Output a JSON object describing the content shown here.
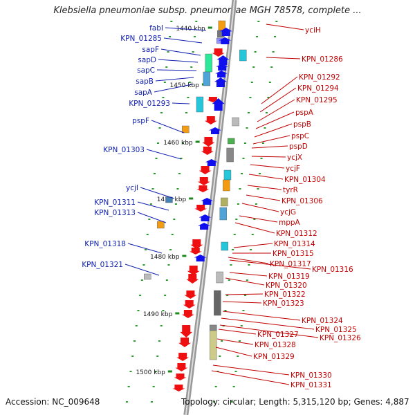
{
  "title": "Klebsiella pneumoniae subsp. pneumoniae MGH 78578, complete ...",
  "footer": {
    "accession_label": "Accession: NC_009648",
    "meta_label": "Topology: circular; Length: 5,315,120 bp; Genes: 4,887"
  },
  "colors": {
    "left_label": "#1020b0",
    "right_label": "#c00000",
    "left_arrow": "#1010ee",
    "right_arrow": "#ee1010",
    "tick": "#1a8a1a",
    "backbone": "#999999"
  },
  "scale_ticks": [
    "1440 kbp",
    "1450 kbp",
    "1460 kbp",
    "1470 kbp",
    "1480 kbp",
    "1490 kbp",
    "1500 kbp"
  ],
  "left_genes": [
    "fabI",
    "KPN_01285",
    "sapF",
    "sapD",
    "sapC",
    "sapB",
    "sapA",
    "KPN_01293",
    "pspF",
    "KPN_01303",
    "ycjI",
    "KPN_01311",
    "KPN_01313",
    "KPN_01318",
    "KPN_01321"
  ],
  "right_genes": [
    "yciH",
    "KPN_01286",
    "KPN_01292",
    "KPN_01294",
    "KPN_01295",
    "pspA",
    "pspB",
    "pspC",
    "pspD",
    "ycjX",
    "ycjF",
    "KPN_01304",
    "tyrR",
    "KPN_01306",
    "ycjG",
    "mppA",
    "KPN_01312",
    "KPN_01314",
    "KPN_01315",
    "KPN_01317",
    "KPN_01316",
    "KPN_01319",
    "KPN_01320",
    "KPN_01322",
    "KPN_01323",
    "KPN_01324",
    "KPN_01325",
    "KPN_01326",
    "KPN_01327",
    "KPN_01328",
    "KPN_01329",
    "KPN_01330",
    "KPN_01331"
  ]
}
